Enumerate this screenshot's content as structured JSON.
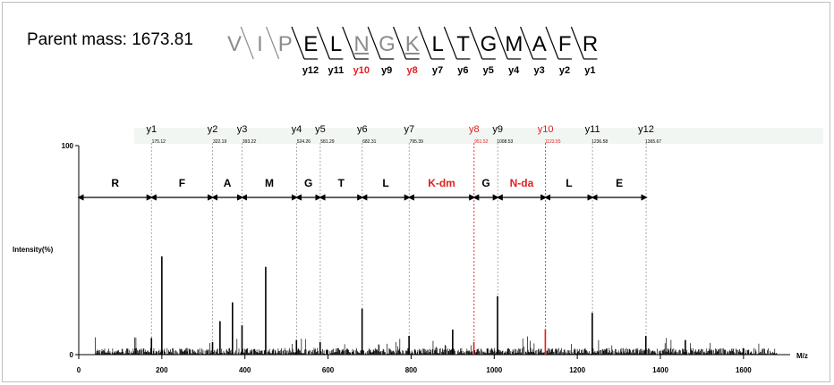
{
  "parent_mass": "Parent mass: 1673.81",
  "colors": {
    "highlight": "#e02020",
    "grey": "#8c8c8c",
    "ink": "#000000",
    "guide": "#a0a0a0"
  },
  "sequence": {
    "residues": [
      {
        "aa": "V",
        "grey": true,
        "underline": false
      },
      {
        "aa": "I",
        "grey": true,
        "underline": false
      },
      {
        "aa": "P",
        "grey": true,
        "underline": false
      },
      {
        "aa": "E",
        "grey": false,
        "underline": false
      },
      {
        "aa": "L",
        "grey": false,
        "underline": false
      },
      {
        "aa": "N",
        "grey": true,
        "underline": true
      },
      {
        "aa": "G",
        "grey": true,
        "underline": false
      },
      {
        "aa": "K",
        "grey": true,
        "underline": true
      },
      {
        "aa": "L",
        "grey": false,
        "underline": false
      },
      {
        "aa": "T",
        "grey": false,
        "underline": false
      },
      {
        "aa": "G",
        "grey": false,
        "underline": false
      },
      {
        "aa": "M",
        "grey": false,
        "underline": false
      },
      {
        "aa": "A",
        "grey": false,
        "underline": false
      },
      {
        "aa": "F",
        "grey": false,
        "underline": false
      },
      {
        "aa": "R",
        "grey": false,
        "underline": false
      }
    ],
    "y_labels": [
      {
        "label": "y12",
        "red": false
      },
      {
        "label": "y11",
        "red": false
      },
      {
        "label": "y10",
        "red": true
      },
      {
        "label": "y9",
        "red": false
      },
      {
        "label": "y8",
        "red": true
      },
      {
        "label": "y7",
        "red": false
      },
      {
        "label": "y6",
        "red": false
      },
      {
        "label": "y5",
        "red": false
      },
      {
        "label": "y4",
        "red": false
      },
      {
        "label": "y3",
        "red": false
      },
      {
        "label": "y2",
        "red": false
      },
      {
        "label": "y1",
        "red": false
      }
    ]
  },
  "chart_data": {
    "type": "bar",
    "xlabel": "M/z",
    "ylabel": "Intensity(%)",
    "xlim": [
      0,
      1680
    ],
    "ylim": [
      0,
      100
    ],
    "xticks": [
      "0",
      "200",
      "400",
      "600",
      "800",
      "1000",
      "1200",
      "1400",
      "1600"
    ],
    "yticks": [
      "0",
      "100"
    ],
    "y_ions": [
      {
        "label": "y1",
        "mz": 175.12,
        "mass_text": "175.12",
        "red": false
      },
      {
        "label": "y2",
        "mz": 322.19,
        "mass_text": "322.19",
        "red": false
      },
      {
        "label": "y3",
        "mz": 393.22,
        "mass_text": "393.22",
        "red": false
      },
      {
        "label": "y4",
        "mz": 524.26,
        "mass_text": "524.26",
        "red": false
      },
      {
        "label": "y5",
        "mz": 581.29,
        "mass_text": "581.29",
        "red": false
      },
      {
        "label": "y6",
        "mz": 682.31,
        "mass_text": "682.31",
        "red": false
      },
      {
        "label": "y7",
        "mz": 795.39,
        "mass_text": "795.39",
        "red": false
      },
      {
        "label": "y8",
        "mz": 951.52,
        "mass_text": "951.52",
        "red": true
      },
      {
        "label": "y9",
        "mz": 1008.53,
        "mass_text": "1008.53",
        "red": false
      },
      {
        "label": "y10",
        "mz": 1123.55,
        "mass_text": "1123.55",
        "red": true
      },
      {
        "label": "y11",
        "mz": 1236.58,
        "mass_text": "1236.58",
        "red": false
      },
      {
        "label": "y12",
        "mz": 1365.67,
        "mass_text": "1365.67",
        "red": false
      }
    ],
    "gap_labels": [
      {
        "label": "R",
        "from": 0,
        "to": 175.12,
        "red": false
      },
      {
        "label": "F",
        "from": 175.12,
        "to": 322.19,
        "red": false
      },
      {
        "label": "A",
        "from": 322.19,
        "to": 393.22,
        "red": false
      },
      {
        "label": "M",
        "from": 393.22,
        "to": 524.26,
        "red": false
      },
      {
        "label": "G",
        "from": 524.26,
        "to": 581.29,
        "red": false
      },
      {
        "label": "T",
        "from": 581.29,
        "to": 682.31,
        "red": false
      },
      {
        "label": "L",
        "from": 682.31,
        "to": 795.39,
        "red": false
      },
      {
        "label": "K-dm",
        "from": 795.39,
        "to": 951.52,
        "red": true
      },
      {
        "label": "G",
        "from": 951.52,
        "to": 1008.53,
        "red": false
      },
      {
        "label": "N-da",
        "from": 1008.53,
        "to": 1123.55,
        "red": true
      },
      {
        "label": "L",
        "from": 1123.55,
        "to": 1236.58,
        "red": false
      },
      {
        "label": "E",
        "from": 1236.58,
        "to": 1365.67,
        "red": false
      }
    ],
    "peaks": [
      {
        "mz": 175,
        "intensity": 8,
        "red": false
      },
      {
        "mz": 200,
        "intensity": 47,
        "red": false
      },
      {
        "mz": 322,
        "intensity": 6,
        "red": false
      },
      {
        "mz": 340,
        "intensity": 16,
        "red": false
      },
      {
        "mz": 370,
        "intensity": 25,
        "red": false
      },
      {
        "mz": 393,
        "intensity": 14,
        "red": false
      },
      {
        "mz": 450,
        "intensity": 42,
        "red": false
      },
      {
        "mz": 524,
        "intensity": 7,
        "red": false
      },
      {
        "mz": 581,
        "intensity": 6,
        "red": false
      },
      {
        "mz": 682,
        "intensity": 22,
        "red": false
      },
      {
        "mz": 795,
        "intensity": 9,
        "red": false
      },
      {
        "mz": 900,
        "intensity": 12,
        "red": false
      },
      {
        "mz": 951,
        "intensity": 6,
        "red": true
      },
      {
        "mz": 1008,
        "intensity": 28,
        "red": false
      },
      {
        "mz": 1123,
        "intensity": 12,
        "red": true
      },
      {
        "mz": 1236,
        "intensity": 20,
        "red": false
      },
      {
        "mz": 1365,
        "intensity": 9,
        "red": false
      },
      {
        "mz": 1460,
        "intensity": 7,
        "red": false
      }
    ]
  }
}
